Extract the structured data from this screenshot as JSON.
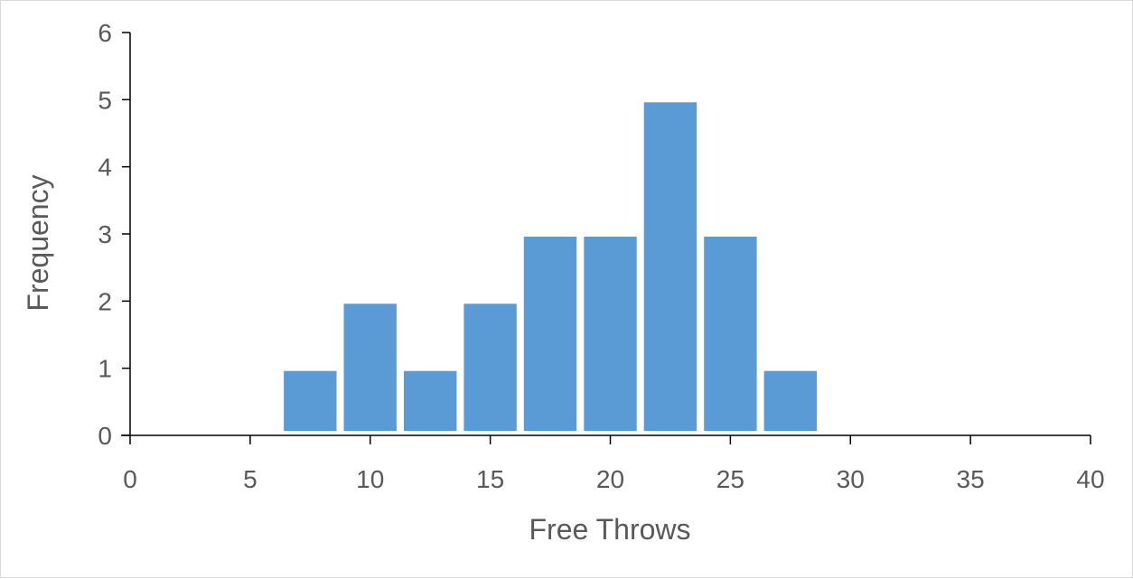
{
  "chart_data": {
    "type": "bar",
    "xlabel": "Free Throws",
    "ylabel": "Frequency",
    "xlim": [
      0,
      40
    ],
    "ylim": [
      0,
      6
    ],
    "x_ticks": [
      0,
      5,
      10,
      15,
      20,
      25,
      30,
      35,
      40
    ],
    "y_ticks": [
      0,
      1,
      2,
      3,
      4,
      5,
      6
    ],
    "bin_width": 2.5,
    "bins": [
      {
        "start": 6.25,
        "end": 8.75,
        "value": 1
      },
      {
        "start": 8.75,
        "end": 11.25,
        "value": 2
      },
      {
        "start": 11.25,
        "end": 13.75,
        "value": 1
      },
      {
        "start": 13.75,
        "end": 16.25,
        "value": 2
      },
      {
        "start": 16.25,
        "end": 18.75,
        "value": 3
      },
      {
        "start": 18.75,
        "end": 21.25,
        "value": 3
      },
      {
        "start": 21.25,
        "end": 23.75,
        "value": 5
      },
      {
        "start": 23.75,
        "end": 26.25,
        "value": 3
      },
      {
        "start": 26.25,
        "end": 28.75,
        "value": 1
      }
    ],
    "grid": false,
    "colors": {
      "bar": "#5b9bd5",
      "axis": "#000000",
      "text": "#595959"
    }
  }
}
